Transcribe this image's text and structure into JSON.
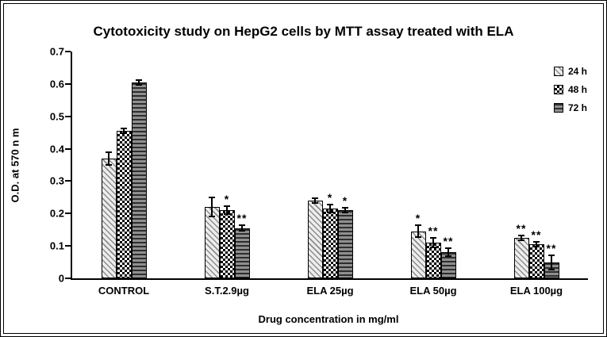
{
  "figure": {
    "background": "#ffffff",
    "border_color": "#000000"
  },
  "chart_data": {
    "type": "bar",
    "title": "Cytotoxicity study on HepG2 cells by MTT assay treated with ELA",
    "xlabel": "Drug concentration in mg/ml",
    "ylabel": "O.D. at 570 n m",
    "ylim": [
      0,
      0.7
    ],
    "ytick_step": 0.1,
    "ytick_labels": [
      "0",
      "0.1",
      "0.2",
      "0.3",
      "0.4",
      "0.5",
      "0.6",
      "0.7"
    ],
    "grid": false,
    "legend_position": "top-right",
    "categories": [
      "CONTROL",
      "S.T.2.9µg",
      "ELA 25µg",
      "ELA 50µg",
      "ELA 100µg"
    ],
    "series": [
      {
        "name": "24 h",
        "pattern": "diagonal-stripes",
        "values": [
          0.37,
          0.22,
          0.24,
          0.145,
          0.125
        ],
        "errors": [
          0.02,
          0.03,
          0.008,
          0.018,
          0.008
        ],
        "significance": [
          "",
          "",
          "",
          "*",
          "**"
        ]
      },
      {
        "name": "48 h",
        "pattern": "checkerboard",
        "values": [
          0.455,
          0.21,
          0.215,
          0.11,
          0.105
        ],
        "errors": [
          0.008,
          0.012,
          0.012,
          0.015,
          0.008
        ],
        "significance": [
          "",
          "*",
          "*",
          "**",
          "**"
        ]
      },
      {
        "name": "72 h",
        "pattern": "horizontal-stripes",
        "values": [
          0.605,
          0.155,
          0.21,
          0.08,
          0.05
        ],
        "errors": [
          0.008,
          0.008,
          0.008,
          0.012,
          0.022
        ],
        "significance": [
          "",
          "**",
          "*",
          "**",
          "**"
        ]
      }
    ]
  }
}
